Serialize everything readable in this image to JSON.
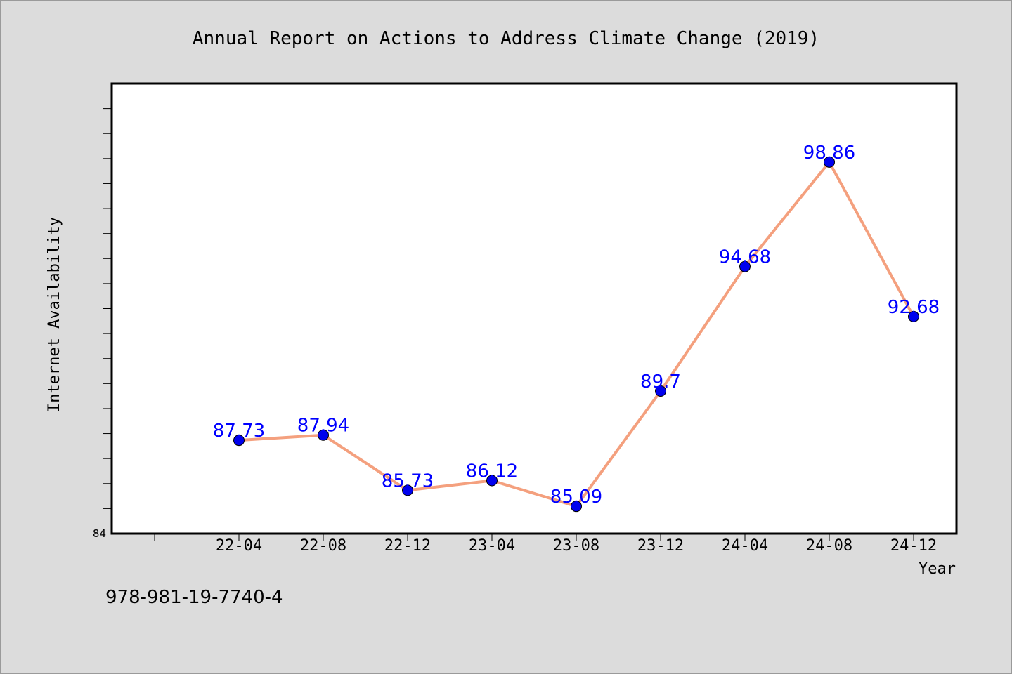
{
  "chart_data": {
    "type": "line",
    "title": "Annual Report on Actions to Address Climate Change (2019)",
    "xlabel": "Year",
    "ylabel": "Internet Availability",
    "categories": [
      "22-04",
      "22-08",
      "22-12",
      "23-04",
      "23-08",
      "23-12",
      "24-04",
      "24-08",
      "24-12"
    ],
    "series": [
      {
        "values": [
          87.73,
          87.94,
          85.73,
          86.12,
          85.09,
          89.7,
          94.68,
          98.86,
          92.68
        ],
        "labels": [
          "87.73",
          "87.94",
          "85.73",
          "86.12",
          "85.09",
          "89.7",
          "94.68",
          "98.86",
          "92.68"
        ],
        "line_color": "#f4a07e",
        "marker_color": "#0000ee"
      }
    ],
    "ylim": [
      84,
      102
    ],
    "yticks_labeled": [
      "84"
    ],
    "grid": false,
    "legend": "none"
  },
  "footer": {
    "isbn": "978-981-19-7740-4"
  }
}
